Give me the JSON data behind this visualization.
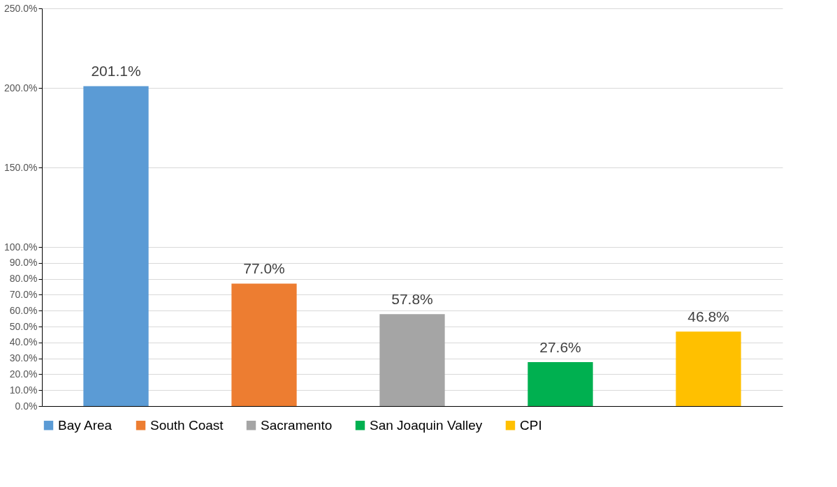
{
  "chart_data": {
    "type": "bar",
    "stacked": true,
    "categories": [
      null,
      null,
      null,
      null,
      null
    ],
    "series": [
      {
        "name": "Bay Area",
        "color": "#5b9bd5",
        "values": [
          201.1,
          null,
          null,
          null,
          null
        ],
        "value_labels": [
          "201.1%",
          null,
          null,
          null,
          null
        ]
      },
      {
        "name": "South Coast",
        "color": "#ed7d31",
        "values": [
          null,
          77.0,
          null,
          null,
          null
        ],
        "value_labels": [
          null,
          "77.0%",
          null,
          null,
          null
        ]
      },
      {
        "name": "Sacramento",
        "color": "#a5a5a5",
        "values": [
          null,
          null,
          57.8,
          null,
          null
        ],
        "value_labels": [
          null,
          null,
          "57.8%",
          null,
          null
        ]
      },
      {
        "name": "San Joaquin Valley",
        "color": "#00b050",
        "values": [
          null,
          null,
          null,
          27.6,
          null
        ],
        "value_labels": [
          null,
          null,
          null,
          "27.6%",
          null
        ]
      },
      {
        "name": "CPI",
        "color": "#ffc000",
        "values": [
          null,
          null,
          null,
          null,
          46.8
        ],
        "value_labels": [
          null,
          null,
          null,
          null,
          "46.8%"
        ]
      }
    ],
    "ylim": [
      0,
      250
    ],
    "yticks": [
      {
        "value": 0,
        "label": "0.0%"
      },
      {
        "value": 10,
        "label": "10.0%"
      },
      {
        "value": 20,
        "label": "20.0%"
      },
      {
        "value": 30,
        "label": "30.0%"
      },
      {
        "value": 40,
        "label": "40.0%"
      },
      {
        "value": 50,
        "label": "50.0%"
      },
      {
        "value": 60,
        "label": "60.0%"
      },
      {
        "value": 70,
        "label": "70.0%"
      },
      {
        "value": 80,
        "label": "80.0%"
      },
      {
        "value": 90,
        "label": "90.0%"
      },
      {
        "value": 100,
        "label": "100.0%"
      },
      {
        "value": 150,
        "label": "150.0%"
      },
      {
        "value": 200,
        "label": "200.0%"
      },
      {
        "value": 250,
        "label": "250.0%"
      }
    ],
    "grid": "y",
    "legend": "bottom"
  }
}
